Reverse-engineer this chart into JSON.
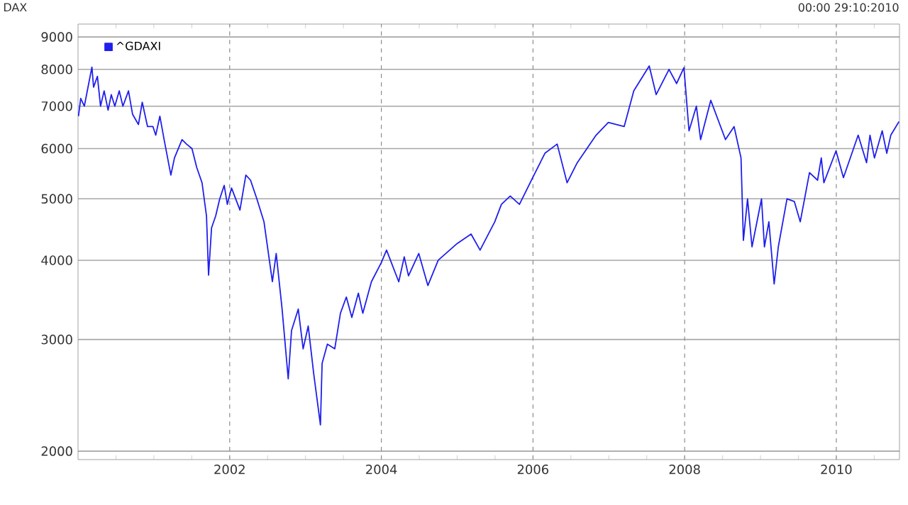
{
  "chart_data": {
    "type": "line",
    "ylabel": "DAX",
    "annotations": [
      "00:00 29:10:2010"
    ],
    "x": [
      "2000-01-03",
      "2000-01-14",
      "2000-02-01",
      "2000-02-22",
      "2000-03-07",
      "2000-03-15",
      "2000-04-03",
      "2000-04-18",
      "2000-05-05",
      "2000-05-24",
      "2000-06-09",
      "2000-06-26",
      "2000-07-17",
      "2000-08-04",
      "2000-08-31",
      "2000-09-20",
      "2000-10-18",
      "2000-11-06",
      "2000-12-01",
      "2000-12-27",
      "2001-01-10",
      "2001-01-30",
      "2001-02-20",
      "2001-03-22",
      "2001-04-09",
      "2001-05-15",
      "2001-06-06",
      "2001-07-02",
      "2001-07-25",
      "2001-08-20",
      "2001-09-11",
      "2001-09-21",
      "2001-10-05",
      "2001-10-25",
      "2001-11-14",
      "2001-12-05",
      "2001-12-20",
      "2002-01-10",
      "2002-02-20",
      "2002-03-18",
      "2002-04-10",
      "2002-05-10",
      "2002-06-14",
      "2002-07-24",
      "2002-08-12",
      "2002-09-10",
      "2002-10-09",
      "2002-10-25",
      "2002-11-27",
      "2002-12-20",
      "2003-01-14",
      "2003-02-10",
      "2003-03-12",
      "2003-03-20",
      "2003-04-15",
      "2003-05-20",
      "2003-06-17",
      "2003-07-15",
      "2003-08-11",
      "2003-09-12",
      "2003-10-03",
      "2003-11-14",
      "2003-12-31",
      "2004-01-26",
      "2004-03-24",
      "2004-04-20",
      "2004-05-10",
      "2004-06-29",
      "2004-08-12",
      "2004-10-01",
      "2004-12-31",
      "2005-03-07",
      "2005-04-20",
      "2005-06-30",
      "2005-08-01",
      "2005-09-13",
      "2005-10-27",
      "2005-12-30",
      "2006-02-28",
      "2006-04-26",
      "2006-06-13",
      "2006-08-01",
      "2006-10-31",
      "2006-12-29",
      "2007-03-14",
      "2007-04-30",
      "2007-07-13",
      "2007-08-16",
      "2007-10-17",
      "2007-11-23",
      "2007-12-28",
      "2008-01-22",
      "2008-02-27",
      "2008-03-17",
      "2008-05-05",
      "2008-07-15",
      "2008-08-26",
      "2008-09-29",
      "2008-10-10",
      "2008-10-30",
      "2008-11-21",
      "2009-01-06",
      "2009-01-20",
      "2009-02-11",
      "2009-03-06",
      "2009-03-26",
      "2009-05-07",
      "2009-06-12",
      "2009-07-10",
      "2009-08-24",
      "2009-10-02",
      "2009-10-20",
      "2009-11-02",
      "2009-12-30",
      "2010-02-05",
      "2010-04-15",
      "2010-05-25",
      "2010-06-11",
      "2010-07-02",
      "2010-08-09",
      "2010-08-31",
      "2010-09-20",
      "2010-10-29"
    ],
    "series": [
      {
        "name": "^GDAXI",
        "color": "#1f1fee",
        "values": [
          6750,
          7200,
          7000,
          7600,
          8065,
          7500,
          7800,
          7000,
          7400,
          6900,
          7300,
          7000,
          7400,
          7000,
          7400,
          6800,
          6550,
          7100,
          6500,
          6500,
          6300,
          6750,
          6200,
          5450,
          5800,
          6200,
          6100,
          6000,
          5600,
          5300,
          4700,
          3790,
          4500,
          4700,
          5000,
          5250,
          4900,
          5200,
          4800,
          5450,
          5350,
          5000,
          4600,
          3700,
          4100,
          3350,
          2600,
          3100,
          3350,
          2900,
          3150,
          2650,
          2200,
          2750,
          2950,
          2900,
          3300,
          3500,
          3250,
          3550,
          3300,
          3700,
          3965,
          4150,
          3700,
          4050,
          3780,
          4100,
          3650,
          4000,
          4250,
          4400,
          4150,
          4600,
          4900,
          5050,
          4900,
          5400,
          5900,
          6100,
          5300,
          5700,
          6300,
          6600,
          6500,
          7400,
          8100,
          7300,
          8000,
          7600,
          8050,
          6400,
          7000,
          6200,
          7150,
          6200,
          6500,
          5800,
          4300,
          5000,
          4200,
          5000,
          4200,
          4600,
          3670,
          4200,
          5000,
          4950,
          4600,
          5500,
          5350,
          5800,
          5300,
          5950,
          5400,
          6300,
          5700,
          6300,
          5800,
          6400,
          5900,
          6300,
          6620
        ]
      }
    ],
    "log": "y",
    "xlim": [
      "2000-01-01",
      "2010-11-01"
    ],
    "ylim": [
      1940,
      9430
    ],
    "xticks": [
      {
        "value": "2000-07-01",
        "label": null
      },
      {
        "value": "2001-01-01",
        "label": null
      },
      {
        "value": "2001-07-01",
        "label": null
      },
      "2002",
      {
        "value": "2002-07-01",
        "label": null
      },
      {
        "value": "2003-01-01",
        "label": null
      },
      {
        "value": "2003-07-01",
        "label": null
      },
      "2004",
      {
        "value": "2004-07-01",
        "label": null
      },
      {
        "value": "2005-01-01",
        "label": null
      },
      {
        "value": "2005-07-01",
        "label": null
      },
      "2006",
      {
        "value": "2006-07-01",
        "label": null
      },
      {
        "value": "2007-01-01",
        "label": null
      },
      {
        "value": "2007-07-01",
        "label": null
      },
      "2008",
      {
        "value": "2008-07-01",
        "label": null
      },
      {
        "value": "2009-01-01",
        "label": null
      },
      {
        "value": "2009-07-01",
        "label": null
      },
      "2010",
      {
        "value": "2010-07-01",
        "label": null
      }
    ],
    "yticks": [
      2000,
      3000,
      4000,
      5000,
      6000,
      7000,
      8000,
      9000
    ],
    "grid": true,
    "legend": "top left",
    "marker": "none",
    "line_style": "solid"
  }
}
